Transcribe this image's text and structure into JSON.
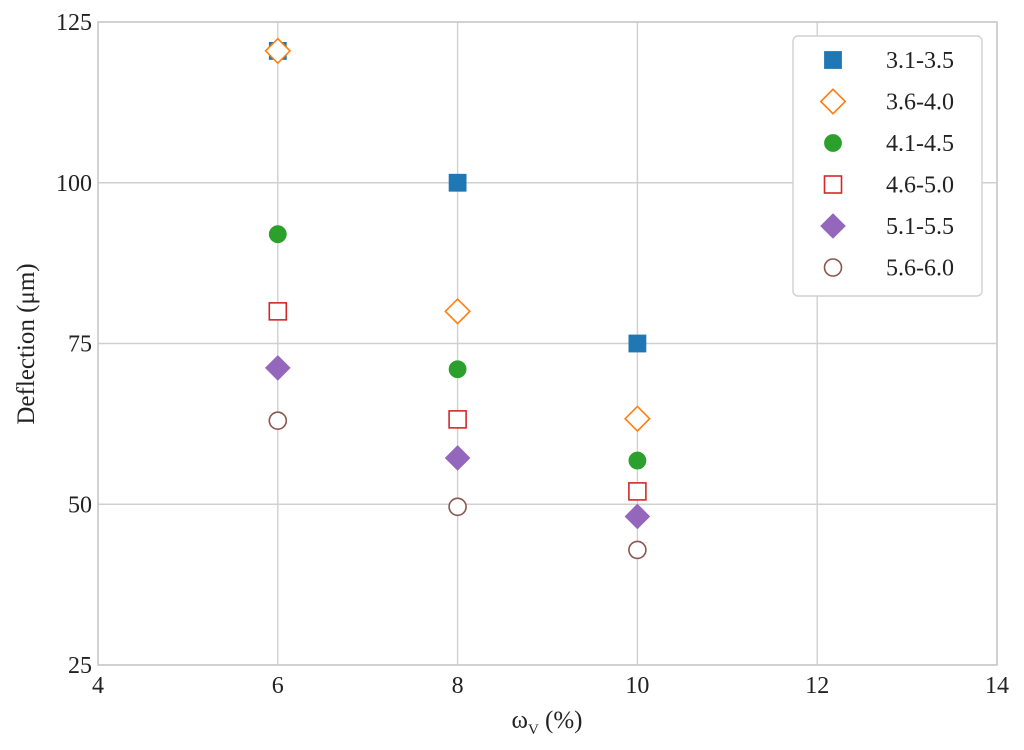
{
  "chart_data": {
    "type": "scatter",
    "xlabel": "ω",
    "xlabel_sub": "V",
    "xlabel_unit": " (%)",
    "ylabel": "Deflection (μm)",
    "xlim": [
      4,
      14
    ],
    "ylim": [
      25,
      125
    ],
    "xticks": [
      4,
      6,
      8,
      10,
      12,
      14
    ],
    "yticks": [
      25,
      50,
      75,
      100,
      125
    ],
    "grid": true,
    "legend_position": "top-right",
    "series": [
      {
        "name": "3.1-3.5",
        "marker": "square",
        "filled": true,
        "color": "#1f77b4",
        "x": [
          6,
          8,
          10
        ],
        "y": [
          120.5,
          100,
          75
        ]
      },
      {
        "name": "3.6-4.0",
        "marker": "diamond",
        "filled": false,
        "color": "#ff7f0e",
        "x": [
          6,
          8,
          10
        ],
        "y": [
          120.5,
          80,
          63.3
        ]
      },
      {
        "name": "4.1-4.5",
        "marker": "circle",
        "filled": true,
        "color": "#2ca02c",
        "x": [
          6,
          8,
          10
        ],
        "y": [
          92,
          71,
          56.8
        ]
      },
      {
        "name": "4.6-5.0",
        "marker": "square",
        "filled": false,
        "color": "#d62728",
        "x": [
          6,
          8,
          10
        ],
        "y": [
          80,
          63.2,
          52
        ]
      },
      {
        "name": "5.1-5.5",
        "marker": "diamond",
        "filled": true,
        "color": "#9467bd",
        "x": [
          6,
          8,
          10
        ],
        "y": [
          71.2,
          57.2,
          48.1
        ]
      },
      {
        "name": "5.6-6.0",
        "marker": "circle",
        "filled": false,
        "color": "#8c564b",
        "x": [
          6,
          8,
          10
        ],
        "y": [
          63,
          49.6,
          42.9
        ]
      }
    ]
  }
}
